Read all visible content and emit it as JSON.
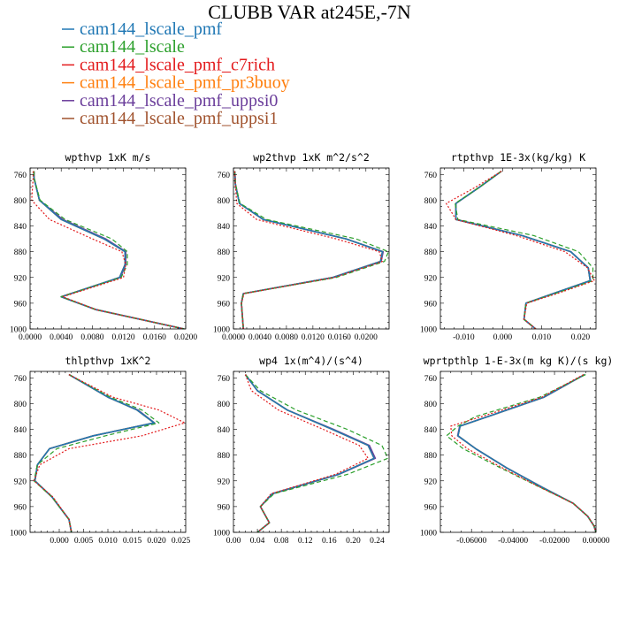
{
  "figure": {
    "title": "CLUBB VAR at245E,-7N"
  },
  "colors": {
    "cam144_lscale_pmf": "#1f77b4",
    "cam144_lscale": "#2ca02c",
    "cam144_lscale_pmf_c7rich": "#e31a1c",
    "cam144_lscale_pmf_pr3buoy": "#ff7f0e",
    "cam144_lscale_pmf_uppsi0": "#6a3d9a",
    "cam144_lscale_pmf_uppsi1": "#a0522d"
  },
  "legend": [
    {
      "name": "cam144_lscale_pmf",
      "color": "#1f77b4"
    },
    {
      "name": "cam144_lscale",
      "color": "#2ca02c"
    },
    {
      "name": "cam144_lscale_pmf_c7rich",
      "color": "#e31a1c"
    },
    {
      "name": "cam144_lscale_pmf_pr3buoy",
      "color": "#ff7f0e"
    },
    {
      "name": "cam144_lscale_pmf_uppsi0",
      "color": "#6a3d9a"
    },
    {
      "name": "cam144_lscale_pmf_uppsi1",
      "color": "#a0522d"
    }
  ],
  "chart_data": [
    {
      "type": "line",
      "title": "wpthvp  1xK m/s",
      "xlim": [
        0,
        0.02
      ],
      "ylim": [
        1000,
        750
      ],
      "xticks": [
        0.0,
        0.004,
        0.008,
        0.012,
        0.016,
        0.02
      ],
      "xtick_labels": [
        "0.0000",
        "0.0040",
        "0.0080",
        "0.0120",
        "0.0160",
        "0.0200"
      ],
      "yticks": [
        760,
        800,
        840,
        880,
        920,
        960,
        1000
      ],
      "y": [
        755,
        765,
        800,
        830,
        860,
        880,
        900,
        920,
        950,
        970,
        1000
      ],
      "series": [
        {
          "key": "cam144_lscale_pmf_uppsi1",
          "style": "solid",
          "x": [
            0.0005,
            0.0005,
            0.0012,
            0.004,
            0.0095,
            0.0122,
            0.0122,
            0.0115,
            0.004,
            0.0085,
            0.0198
          ]
        },
        {
          "key": "cam144_lscale_pmf_uppsi0",
          "style": "solid",
          "x": [
            0.0005,
            0.0005,
            0.0012,
            0.0042,
            0.0097,
            0.0123,
            0.0123,
            0.0116,
            0.004,
            0.0085,
            0.0198
          ]
        },
        {
          "key": "cam144_lscale_pmf_pr3buoy",
          "style": "solid",
          "x": [
            0.0005,
            0.0005,
            0.0012,
            0.004,
            0.0095,
            0.0122,
            0.0122,
            0.0115,
            0.004,
            0.0085,
            0.0198
          ]
        },
        {
          "key": "cam144_lscale_pmf",
          "style": "solid",
          "x": [
            0.0005,
            0.0005,
            0.0012,
            0.004,
            0.0095,
            0.0122,
            0.0122,
            0.0115,
            0.004,
            0.0085,
            0.0198
          ]
        },
        {
          "key": "cam144_lscale",
          "style": "dashed",
          "x": [
            0.0005,
            0.0005,
            0.0013,
            0.0045,
            0.0105,
            0.0125,
            0.0125,
            0.0117,
            0.004,
            0.0085,
            0.0198
          ]
        },
        {
          "key": "cam144_lscale_pmf_c7rich",
          "style": "dotted",
          "x": [
            0.0004,
            0.0004,
            0.0002,
            0.0025,
            0.008,
            0.0118,
            0.0123,
            0.012,
            0.0042,
            0.0085,
            0.0198
          ]
        }
      ]
    },
    {
      "type": "line",
      "title": "wp2thvp  1xK m^2/s^2",
      "xlim": [
        0,
        0.0235
      ],
      "ylim": [
        1000,
        750
      ],
      "xticks": [
        0.0,
        0.004,
        0.008,
        0.012,
        0.016,
        0.02
      ],
      "xtick_labels": [
        "0.0000",
        "0.0040",
        "0.0080",
        "0.0120",
        "0.0160",
        "0.0200"
      ],
      "yticks": [
        760,
        800,
        840,
        880,
        920,
        960,
        1000
      ],
      "y": [
        755,
        775,
        805,
        830,
        860,
        880,
        895,
        920,
        945,
        960,
        1000
      ],
      "series": [
        {
          "key": "cam144_lscale_pmf_uppsi1",
          "style": "solid",
          "x": [
            0.0002,
            0.0003,
            0.0009,
            0.0045,
            0.017,
            0.0225,
            0.0222,
            0.015,
            0.0015,
            0.0012,
            0.0015
          ]
        },
        {
          "key": "cam144_lscale_pmf_uppsi0",
          "style": "solid",
          "x": [
            0.0002,
            0.0003,
            0.0009,
            0.0045,
            0.017,
            0.0226,
            0.0223,
            0.015,
            0.0015,
            0.0012,
            0.0015
          ]
        },
        {
          "key": "cam144_lscale_pmf_pr3buoy",
          "style": "solid",
          "x": [
            0.0002,
            0.0003,
            0.0009,
            0.0045,
            0.017,
            0.0225,
            0.0222,
            0.015,
            0.0015,
            0.0012,
            0.0015
          ]
        },
        {
          "key": "cam144_lscale_pmf",
          "style": "solid",
          "x": [
            0.0002,
            0.0003,
            0.0009,
            0.0045,
            0.017,
            0.0225,
            0.0222,
            0.015,
            0.0015,
            0.0012,
            0.0015
          ]
        },
        {
          "key": "cam144_lscale",
          "style": "dashed",
          "x": [
            0.0002,
            0.0003,
            0.001,
            0.005,
            0.0185,
            0.0234,
            0.0228,
            0.0155,
            0.0015,
            0.0012,
            0.0015
          ]
        },
        {
          "key": "cam144_lscale_pmf_c7rich",
          "style": "dotted",
          "x": [
            0.0002,
            0.0003,
            0.0005,
            0.0035,
            0.0155,
            0.022,
            0.0225,
            0.0152,
            0.0016,
            0.0012,
            0.0015
          ]
        }
      ]
    },
    {
      "type": "line",
      "title": "rtpthvp  1E-3x(kg/kg) K",
      "xlim": [
        -0.016,
        0.024
      ],
      "ylim": [
        1000,
        750
      ],
      "xticks": [
        -0.01,
        0.0,
        0.01,
        0.02
      ],
      "xtick_labels": [
        "-0.010",
        "0.000",
        "0.010",
        "0.020"
      ],
      "yticks": [
        760,
        800,
        840,
        880,
        920,
        960,
        1000
      ],
      "y": [
        755,
        780,
        805,
        830,
        855,
        880,
        905,
        925,
        945,
        960,
        985,
        1000
      ],
      "series": [
        {
          "key": "cam144_lscale_pmf_uppsi1",
          "style": "solid",
          "x": [
            -0.0003,
            -0.006,
            -0.012,
            -0.012,
            0.005,
            0.0175,
            0.022,
            0.0225,
            0.013,
            0.006,
            0.0055,
            0.0085
          ]
        },
        {
          "key": "cam144_lscale_pmf_uppsi0",
          "style": "solid",
          "x": [
            -0.0003,
            -0.006,
            -0.012,
            -0.012,
            0.005,
            0.0175,
            0.022,
            0.0226,
            0.013,
            0.006,
            0.0055,
            0.0085
          ]
        },
        {
          "key": "cam144_lscale_pmf_pr3buoy",
          "style": "solid",
          "x": [
            -0.0003,
            -0.006,
            -0.012,
            -0.012,
            0.005,
            0.0175,
            0.022,
            0.0225,
            0.013,
            0.006,
            0.0055,
            0.0085
          ]
        },
        {
          "key": "cam144_lscale_pmf",
          "style": "solid",
          "x": [
            -0.0003,
            -0.006,
            -0.012,
            -0.012,
            0.005,
            0.0175,
            0.022,
            0.0225,
            0.013,
            0.006,
            0.0055,
            0.0085
          ]
        },
        {
          "key": "cam144_lscale",
          "style": "dashed",
          "x": [
            -0.0003,
            -0.006,
            -0.0122,
            -0.0115,
            0.008,
            0.0195,
            0.0232,
            0.0232,
            0.0135,
            0.006,
            0.0055,
            0.0085
          ]
        },
        {
          "key": "cam144_lscale_pmf_c7rich",
          "style": "dotted",
          "x": [
            -0.0003,
            -0.007,
            -0.0145,
            -0.012,
            0.0035,
            0.016,
            0.0218,
            0.0236,
            0.014,
            0.0062,
            0.0055,
            0.0085
          ]
        }
      ]
    },
    {
      "type": "line",
      "title": "thlpthvp  1xK^2",
      "xlim": [
        -0.006,
        0.026
      ],
      "ylim": [
        1000,
        750
      ],
      "xticks": [
        0.0,
        0.005,
        0.01,
        0.015,
        0.02,
        0.025
      ],
      "xtick_labels": [
        "0.000",
        "0.005",
        "0.010",
        "0.015",
        "0.020",
        "0.025"
      ],
      "yticks": [
        760,
        800,
        840,
        880,
        920,
        960,
        1000
      ],
      "y": [
        755,
        790,
        810,
        830,
        850,
        870,
        895,
        920,
        945,
        980,
        1000
      ],
      "series": [
        {
          "key": "cam144_lscale_pmf_uppsi1",
          "style": "solid",
          "x": [
            0.002,
            0.01,
            0.016,
            0.0195,
            0.007,
            -0.002,
            -0.0045,
            -0.005,
            -0.0015,
            0.002,
            0.0025
          ]
        },
        {
          "key": "cam144_lscale_pmf_uppsi0",
          "style": "solid",
          "x": [
            0.002,
            0.01,
            0.0162,
            0.0196,
            0.007,
            -0.002,
            -0.0045,
            -0.005,
            -0.0015,
            0.002,
            0.0025
          ]
        },
        {
          "key": "cam144_lscale_pmf_pr3buoy",
          "style": "solid",
          "x": [
            0.002,
            0.01,
            0.016,
            0.0195,
            0.007,
            -0.002,
            -0.0045,
            -0.005,
            -0.0015,
            0.002,
            0.0025
          ]
        },
        {
          "key": "cam144_lscale_pmf",
          "style": "solid",
          "x": [
            0.002,
            0.01,
            0.016,
            0.0195,
            0.007,
            -0.002,
            -0.0045,
            -0.005,
            -0.0015,
            0.002,
            0.0025
          ]
        },
        {
          "key": "cam144_lscale",
          "style": "dashed",
          "x": [
            0.002,
            0.0105,
            0.017,
            0.0205,
            0.0095,
            -0.0005,
            -0.0045,
            -0.0052,
            -0.0015,
            0.002,
            0.0025
          ]
        },
        {
          "key": "cam144_lscale_pmf_c7rich",
          "style": "dotted",
          "x": [
            0.002,
            0.011,
            0.0205,
            0.0258,
            0.017,
            0.002,
            -0.004,
            -0.0052,
            -0.0013,
            0.002,
            0.0025
          ]
        }
      ]
    },
    {
      "type": "line",
      "title": "wp4  1x(m^4)/(s^4)",
      "xlim": [
        0.0,
        0.26
      ],
      "ylim": [
        1000,
        750
      ],
      "xticks": [
        0.0,
        0.04,
        0.08,
        0.12,
        0.16,
        0.2,
        0.24
      ],
      "xtick_labels": [
        "0.00",
        "0.04",
        "0.08",
        "0.12",
        "0.16",
        "0.20",
        "0.24"
      ],
      "yticks": [
        760,
        800,
        840,
        880,
        920,
        960,
        1000
      ],
      "y": [
        755,
        780,
        810,
        840,
        865,
        885,
        910,
        940,
        960,
        985,
        1000
      ],
      "series": [
        {
          "key": "cam144_lscale_pmf_uppsi1",
          "style": "solid",
          "x": [
            0.02,
            0.04,
            0.09,
            0.165,
            0.225,
            0.235,
            0.175,
            0.065,
            0.045,
            0.06,
            0.04
          ]
        },
        {
          "key": "cam144_lscale_pmf_uppsi0",
          "style": "solid",
          "x": [
            0.02,
            0.04,
            0.09,
            0.167,
            0.227,
            0.237,
            0.176,
            0.065,
            0.045,
            0.06,
            0.04
          ]
        },
        {
          "key": "cam144_lscale_pmf_pr3buoy",
          "style": "solid",
          "x": [
            0.02,
            0.04,
            0.09,
            0.165,
            0.225,
            0.235,
            0.175,
            0.065,
            0.045,
            0.06,
            0.04
          ]
        },
        {
          "key": "cam144_lscale_pmf",
          "style": "solid",
          "x": [
            0.02,
            0.04,
            0.09,
            0.165,
            0.225,
            0.235,
            0.175,
            0.065,
            0.045,
            0.06,
            0.04
          ]
        },
        {
          "key": "cam144_lscale",
          "style": "dashed",
          "x": [
            0.02,
            0.045,
            0.105,
            0.19,
            0.248,
            0.258,
            0.19,
            0.068,
            0.045,
            0.06,
            0.04
          ]
        },
        {
          "key": "cam144_lscale_pmf_c7rich",
          "style": "dotted",
          "x": [
            0.02,
            0.03,
            0.075,
            0.15,
            0.21,
            0.225,
            0.17,
            0.063,
            0.045,
            0.06,
            0.04
          ]
        }
      ]
    },
    {
      "type": "line",
      "title": "wprtpthlp  1-E-3x(m kg K)/(s kg)",
      "xlim": [
        -0.075,
        0.0
      ],
      "ylim": [
        1000,
        750
      ],
      "xticks": [
        -0.06,
        -0.04,
        -0.02,
        0.0
      ],
      "xtick_labels": [
        "-0.06000",
        "-0.04000",
        "-0.02000",
        "0.00000"
      ],
      "yticks": [
        760,
        800,
        840,
        880,
        920,
        960,
        1000
      ],
      "y": [
        755,
        790,
        820,
        835,
        850,
        870,
        900,
        930,
        955,
        975,
        990,
        1000
      ],
      "series": [
        {
          "key": "cam144_lscale_pmf_uppsi1",
          "style": "solid",
          "x": [
            -0.0055,
            -0.025,
            -0.052,
            -0.0655,
            -0.0665,
            -0.058,
            -0.043,
            -0.026,
            -0.011,
            -0.004,
            -0.001,
            0.0
          ]
        },
        {
          "key": "cam144_lscale_pmf_uppsi0",
          "style": "solid",
          "x": [
            -0.0055,
            -0.025,
            -0.052,
            -0.0657,
            -0.0667,
            -0.058,
            -0.043,
            -0.026,
            -0.011,
            -0.004,
            -0.001,
            0.0
          ]
        },
        {
          "key": "cam144_lscale_pmf_pr3buoy",
          "style": "solid",
          "x": [
            -0.0055,
            -0.025,
            -0.052,
            -0.0655,
            -0.0665,
            -0.058,
            -0.043,
            -0.026,
            -0.011,
            -0.004,
            -0.001,
            0.0
          ]
        },
        {
          "key": "cam144_lscale_pmf",
          "style": "solid",
          "x": [
            -0.0055,
            -0.025,
            -0.052,
            -0.0655,
            -0.0665,
            -0.058,
            -0.043,
            -0.026,
            -0.011,
            -0.004,
            -0.001,
            0.0
          ]
        },
        {
          "key": "cam144_lscale",
          "style": "dashed",
          "x": [
            -0.005,
            -0.027,
            -0.058,
            -0.0665,
            -0.072,
            -0.064,
            -0.046,
            -0.027,
            -0.011,
            -0.004,
            -0.001,
            0.0
          ]
        },
        {
          "key": "cam144_lscale_pmf_c7rich",
          "style": "dotted",
          "x": [
            -0.006,
            -0.026,
            -0.055,
            -0.07,
            -0.0695,
            -0.062,
            -0.045,
            -0.027,
            -0.011,
            -0.004,
            -0.001,
            0.0
          ]
        }
      ]
    }
  ]
}
